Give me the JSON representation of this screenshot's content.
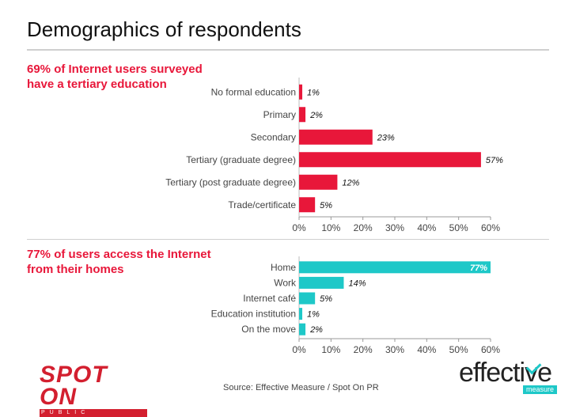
{
  "title": "Demographics of respondents",
  "source": "Source: Effective Measure / Spot On PR",
  "logos": {
    "spot_on": {
      "main": "SPOT ON",
      "sub": "PUBLIC RELATIONS"
    },
    "effective": {
      "word": "effective",
      "sub": "measure"
    }
  },
  "colors": {
    "education": "#e8173a",
    "access": "#1ec8c8",
    "headline": "#e8173a"
  },
  "chart_data": [
    {
      "type": "bar",
      "orientation": "horizontal",
      "headline": "69% of Internet users surveyed\nhave a tertiary education",
      "categories": [
        "No formal education",
        "Primary",
        "Secondary",
        "Tertiary (graduate degree)",
        "Tertiary (post graduate degree)",
        "Trade/certificate"
      ],
      "values": [
        1,
        2,
        23,
        57,
        12,
        5
      ],
      "value_labels": [
        "1%",
        "2%",
        "23%",
        "57%",
        "12%",
        "5%"
      ],
      "xlim": [
        0,
        60
      ],
      "xticks": [
        "0%",
        "10%",
        "20%",
        "30%",
        "40%",
        "50%",
        "60%"
      ]
    },
    {
      "type": "bar",
      "orientation": "horizontal",
      "headline": "77% of users access the Internet\nfrom their homes",
      "categories": [
        "Home",
        "Work",
        "Internet café",
        "Education institution",
        "On the move"
      ],
      "values": [
        77,
        14,
        5,
        1,
        2
      ],
      "value_labels": [
        "77%",
        "14%",
        "5%",
        "1%",
        "2%"
      ],
      "xlim": [
        0,
        60
      ],
      "xticks": [
        "0%",
        "10%",
        "20%",
        "30%",
        "40%",
        "50%",
        "60%"
      ]
    }
  ]
}
